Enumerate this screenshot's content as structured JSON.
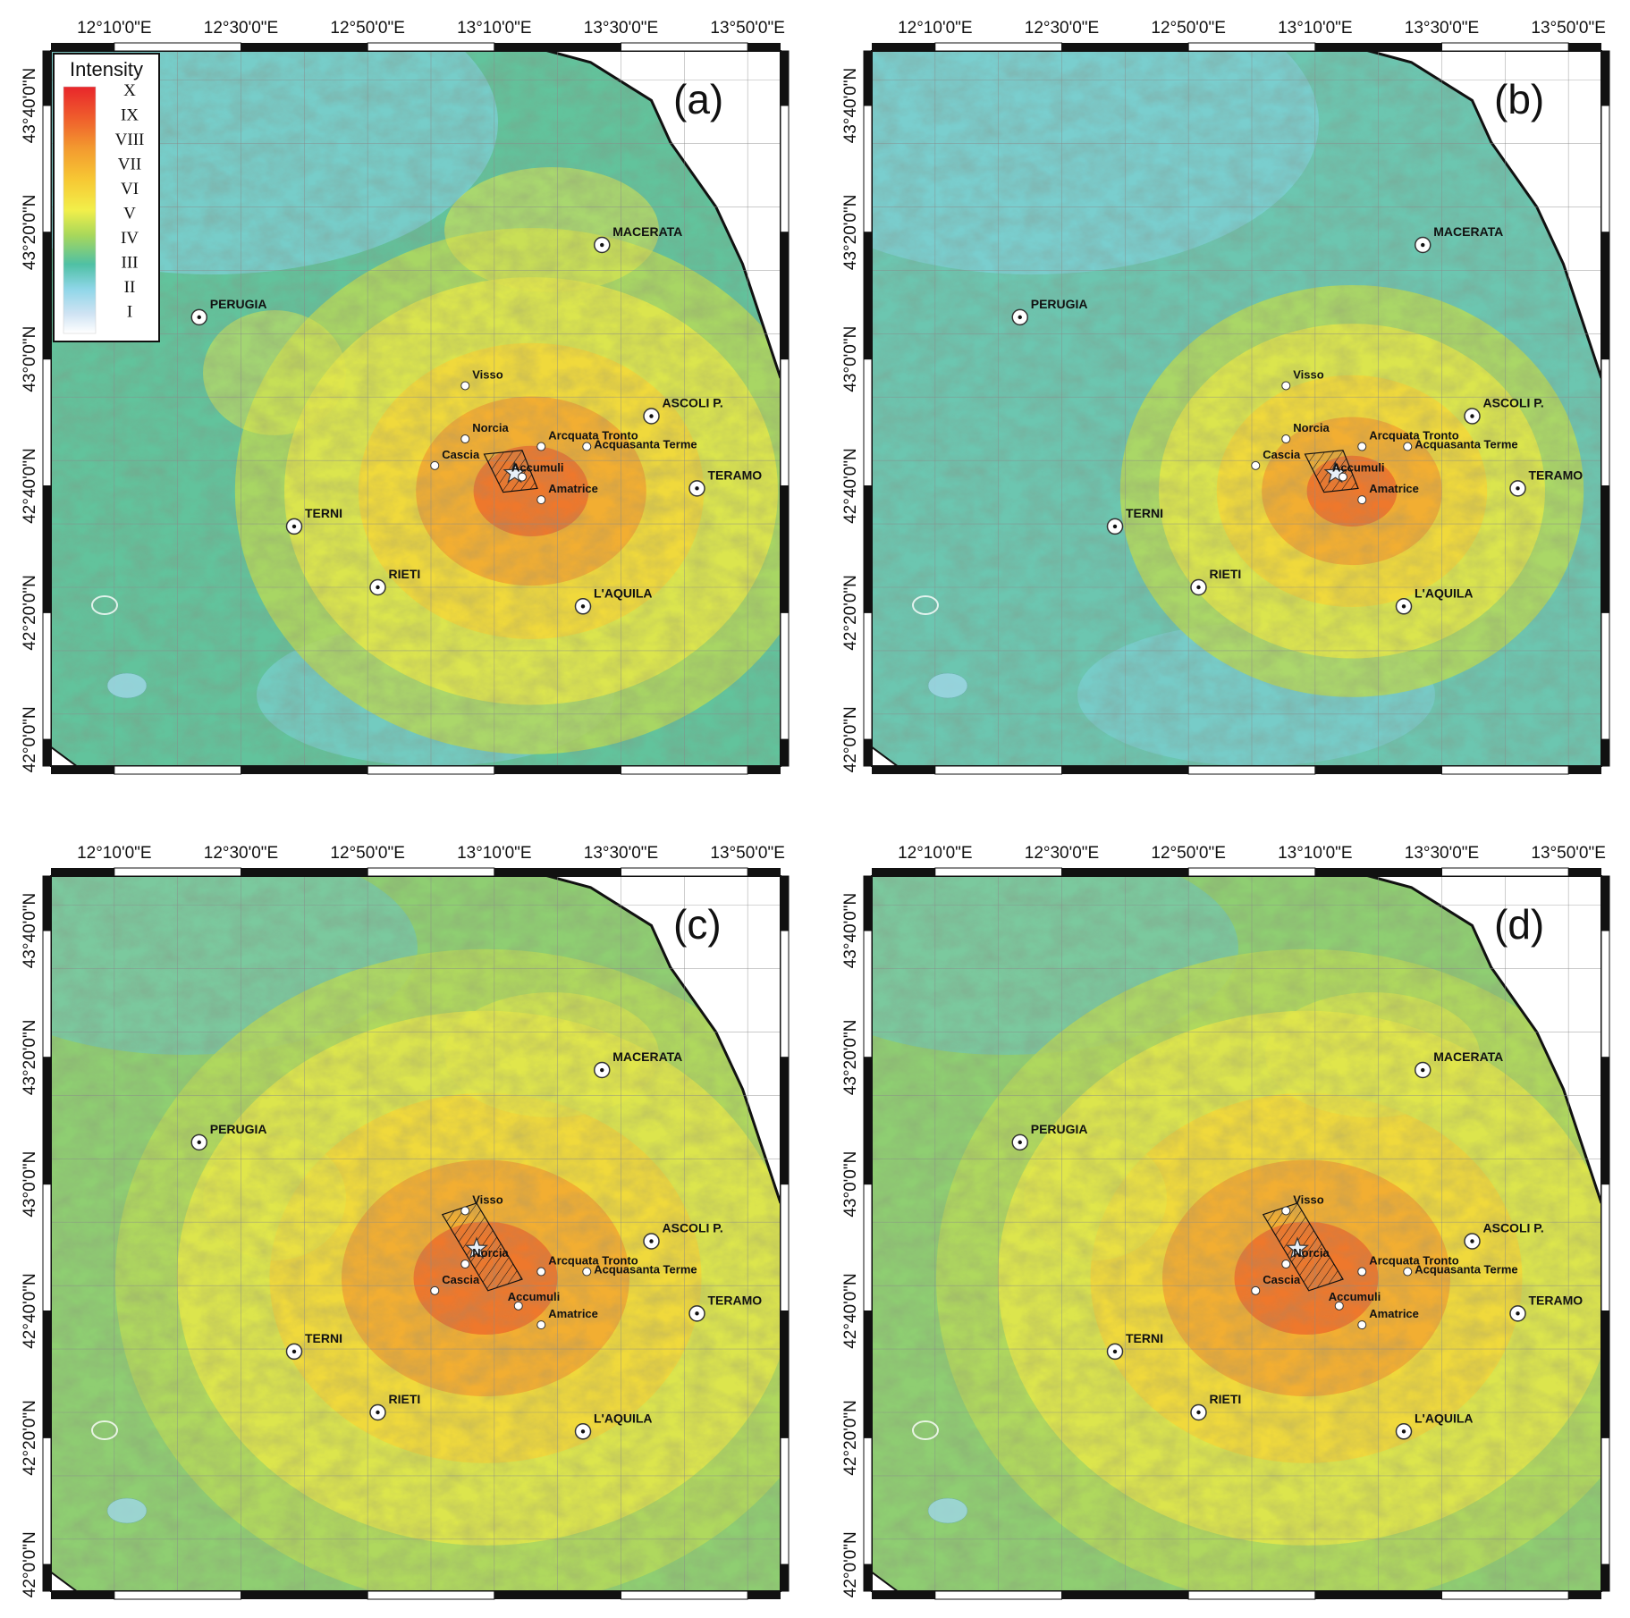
{
  "figure": {
    "panels": [
      {
        "label": "(a)",
        "epicenter": "Accumuli",
        "fault_zone": "amatrice"
      },
      {
        "label": "(b)",
        "epicenter": "Accumuli",
        "fault_zone": "amatrice"
      },
      {
        "label": "(c)",
        "epicenter": "Norcia",
        "fault_zone": "norcia"
      },
      {
        "label": "(d)",
        "epicenter": "Norcia",
        "fault_zone": "norcia"
      }
    ],
    "longitude_labels": [
      "12°10'0\"E",
      "12°30'0\"E",
      "12°50'0\"E",
      "13°10'0\"E",
      "13°30'0\"E",
      "13°50'0\"E"
    ],
    "latitude_labels": [
      "43°40'0\"N",
      "43°20'0\"N",
      "43°0'0\"N",
      "42°40'0\"N",
      "42°20'0\"N",
      "42°0'0\"N"
    ],
    "legend": {
      "title": "Intensity",
      "levels": [
        "X",
        "IX",
        "VIII",
        "VII",
        "VI",
        "V",
        "IV",
        "III",
        "II",
        "I"
      ],
      "colors": [
        "#e8262b",
        "#ef5a2c",
        "#f39a2f",
        "#f7c934",
        "#f2ef4a",
        "#a9d85a",
        "#4fc0a4",
        "#8fd6e8",
        "#cfe3f3",
        "#ffffff"
      ]
    },
    "cities": [
      {
        "name": "MACERATA",
        "lon": 13.45,
        "lat": 43.3
      },
      {
        "name": "PERUGIA",
        "lon": 12.39,
        "lat": 43.11
      },
      {
        "name": "ASCOLI P.",
        "lon": 13.58,
        "lat": 42.85
      },
      {
        "name": "TERAMO",
        "lon": 13.7,
        "lat": 42.66
      },
      {
        "name": "TERNI",
        "lon": 12.64,
        "lat": 42.56
      },
      {
        "name": "RIETI",
        "lon": 12.86,
        "lat": 42.4
      },
      {
        "name": "L'AQUILA",
        "lon": 13.4,
        "lat": 42.35
      }
    ],
    "towns": [
      {
        "name": "Visso",
        "lon": 13.09,
        "lat": 42.93
      },
      {
        "name": "Norcia",
        "lon": 13.09,
        "lat": 42.79
      },
      {
        "name": "Cascia",
        "lon": 13.01,
        "lat": 42.72
      },
      {
        "name": "Arcquata Tronto",
        "lon": 13.29,
        "lat": 42.77
      },
      {
        "name": "Acquasanta Terme",
        "lon": 13.41,
        "lat": 42.77
      },
      {
        "name": "Accumuli",
        "lon": 13.24,
        "lat": 42.69
      },
      {
        "name": "Amatrice",
        "lon": 13.29,
        "lat": 42.63
      }
    ],
    "colors": {
      "frame": "#111111",
      "sea": "#ffffff",
      "grid": "#8a8a8a"
    }
  }
}
